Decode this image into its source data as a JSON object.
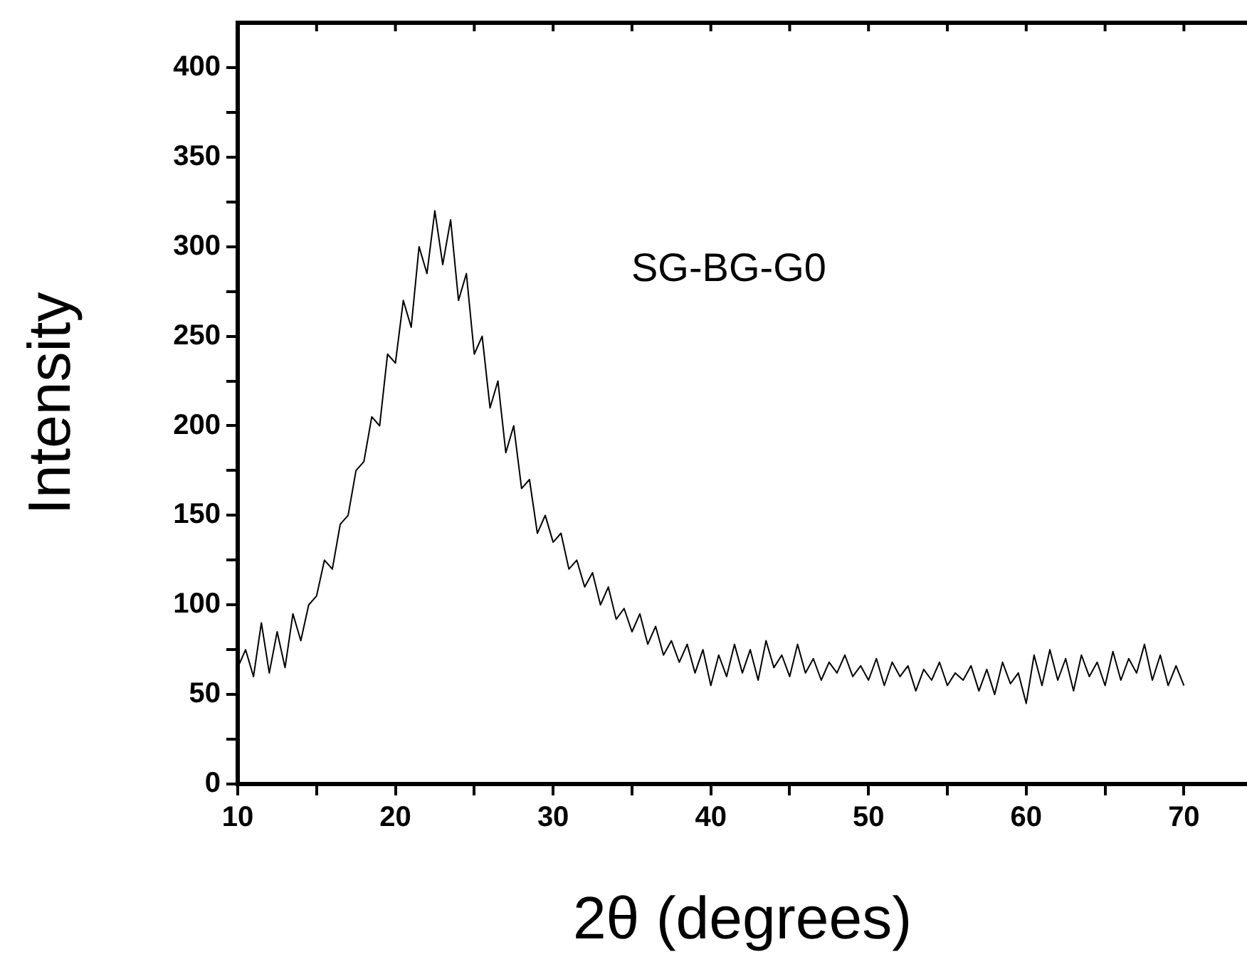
{
  "chart_data": {
    "type": "line",
    "xlabel": "2θ (degrees)",
    "ylabel": "Intensity",
    "annotations": [
      "SG-BG-G0"
    ],
    "x": [
      10,
      10.5,
      11,
      11.5,
      12,
      12.5,
      13,
      13.5,
      14,
      14.5,
      15,
      15.5,
      16,
      16.5,
      17,
      17.5,
      18,
      18.5,
      19,
      19.5,
      20,
      20.5,
      21,
      21.5,
      22,
      22.5,
      23,
      23.5,
      24,
      24.5,
      25,
      25.5,
      26,
      26.5,
      27,
      27.5,
      28,
      28.5,
      29,
      29.5,
      30,
      30.5,
      31,
      31.5,
      32,
      32.5,
      33,
      33.5,
      34,
      34.5,
      35,
      35.5,
      36,
      36.5,
      37,
      37.5,
      38,
      38.5,
      39,
      39.5,
      40,
      40.5,
      41,
      41.5,
      42,
      42.5,
      43,
      43.5,
      44,
      44.5,
      45,
      45.5,
      46,
      46.5,
      47,
      47.5,
      48,
      48.5,
      49,
      49.5,
      50,
      50.5,
      51,
      51.5,
      52,
      52.5,
      53,
      53.5,
      54,
      54.5,
      55,
      55.5,
      56,
      56.5,
      57,
      57.5,
      58,
      58.5,
      59,
      59.5,
      60,
      60.5,
      61,
      61.5,
      62,
      62.5,
      63,
      63.5,
      64,
      64.5,
      65,
      65.5,
      66,
      66.5,
      67,
      67.5,
      68,
      68.5,
      69,
      69.5,
      70
    ],
    "series": [
      {
        "color": "#000000",
        "values": [
          65,
          75,
          60,
          90,
          62,
          85,
          65,
          95,
          80,
          100,
          105,
          125,
          120,
          145,
          150,
          175,
          180,
          205,
          200,
          240,
          235,
          270,
          255,
          300,
          285,
          320,
          290,
          315,
          270,
          285,
          240,
          250,
          210,
          225,
          185,
          200,
          165,
          170,
          140,
          150,
          135,
          140,
          120,
          125,
          110,
          118,
          100,
          110,
          92,
          98,
          85,
          95,
          78,
          88,
          72,
          80,
          68,
          78,
          62,
          75,
          55,
          72,
          60,
          78,
          62,
          75,
          58,
          80,
          65,
          72,
          60,
          78,
          62,
          70,
          58,
          68,
          62,
          72,
          60,
          66,
          58,
          70,
          55,
          68,
          60,
          66,
          52,
          64,
          58,
          68,
          55,
          62,
          58,
          66,
          52,
          64,
          50,
          68,
          56,
          62,
          45,
          72,
          55,
          75,
          58,
          70,
          52,
          72,
          60,
          68,
          55,
          74,
          58,
          70,
          62,
          78,
          58,
          72,
          55,
          66,
          55
        ]
      }
    ],
    "xlim": [
      10,
      74
    ],
    "ylim": [
      0,
      425
    ],
    "xticks": [
      10,
      {
        "value": 15,
        "label": null
      },
      20,
      {
        "value": 25,
        "label": null
      },
      30,
      {
        "value": 35,
        "label": null
      },
      40,
      {
        "value": 45,
        "label": null
      },
      50,
      {
        "value": 55,
        "label": null
      },
      60,
      {
        "value": 65,
        "label": null
      },
      70
    ],
    "yticks": [
      0,
      {
        "value": 25,
        "label": null
      },
      50,
      {
        "value": 75,
        "label": null
      },
      100,
      {
        "value": 125,
        "label": null
      },
      150,
      {
        "value": 175,
        "label": null
      },
      200,
      {
        "value": 225,
        "label": null
      },
      250,
      {
        "value": 275,
        "label": null
      },
      300,
      {
        "value": 325,
        "label": null
      },
      350,
      {
        "value": 375,
        "label": null
      },
      400
    ],
    "grid": false,
    "legend": false,
    "marker": "none",
    "line_style": "solid"
  }
}
